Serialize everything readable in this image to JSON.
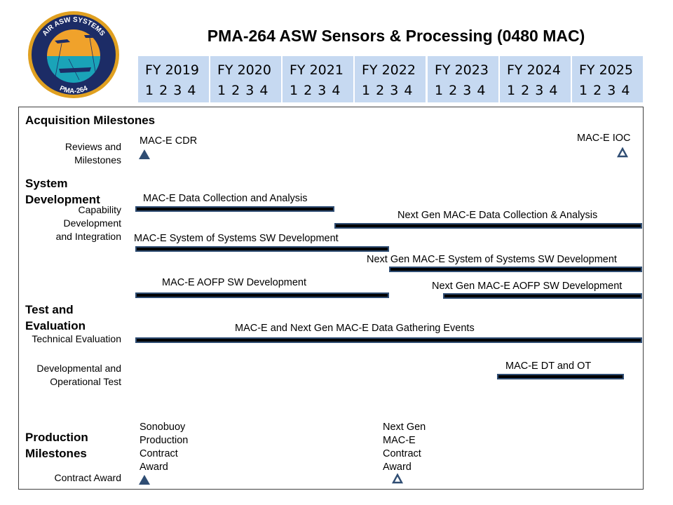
{
  "title": "PMA-264 ASW Sensors & Processing (0480 MAC)",
  "logo": {
    "top_text": "AIR ASW SYSTEMS",
    "bottom_text": "PMA-264",
    "colors": {
      "ring": "#1c2c66",
      "outer_gold": "#e0a020",
      "sky": "#f0a22b",
      "sea": "#1aa3b8"
    }
  },
  "timeline": {
    "fiscal_years": [
      {
        "label": "FY 2019",
        "quarters": "1 2 3 4"
      },
      {
        "label": "FY 2020",
        "quarters": "1 2 3 4"
      },
      {
        "label": "FY 2021",
        "quarters": "1 2 3 4"
      },
      {
        "label": "FY 2022",
        "quarters": "1 2 3 4"
      },
      {
        "label": "FY 2023",
        "quarters": "1 2 3 4"
      },
      {
        "label": "FY 2024",
        "quarters": "1 2 3 4"
      },
      {
        "label": "FY 2025",
        "quarters": "1 2 3 4"
      }
    ],
    "header_color": "#c6d9f1"
  },
  "sections": {
    "acquisition": {
      "title": "Acquisition Milestones",
      "sub": "Reviews and Milestones"
    },
    "system_dev": {
      "title": "System Development",
      "sub": "Capability Development and Integration"
    },
    "test_eval": {
      "title": "Test and Evaluation",
      "sub1": "Technical Evaluation",
      "sub2": "Developmental and Operational Test"
    },
    "production": {
      "title": "Production Milestones",
      "sub": "Contract Award"
    }
  },
  "chart_data": {
    "type": "gantt",
    "title": "PMA-264 ASW Sensors & Processing (0480 MAC)",
    "x_axis": {
      "start": "FY2019 Q1",
      "end": "FY2025 Q4",
      "unit": "fiscal quarter"
    },
    "colors": {
      "bar_fill": "#000000",
      "bar_outline": "#2f4d73",
      "milestone": "#2f4d73"
    },
    "bars": [
      {
        "label": "MAC-E Data Collection and Analysis",
        "start": "FY2019 Q1",
        "end": "FY2021 Q3"
      },
      {
        "label": "Next Gen MAC-E Data Collection & Analysis",
        "start": "FY2021 Q4",
        "end": "FY2025 Q4"
      },
      {
        "label": "MAC-E System of Systems SW Development",
        "start": "FY2019 Q1",
        "end": "FY2022 Q2"
      },
      {
        "label": "Next Gen MAC-E System of Systems SW Development",
        "start": "FY2022 Q3",
        "end": "FY2025 Q4"
      },
      {
        "label": "MAC-E AOFP SW Development",
        "start": "FY2019 Q1",
        "end": "FY2022 Q2"
      },
      {
        "label": "Next Gen MAC-E AOFP SW Development",
        "start": "FY2023 Q2",
        "end": "FY2025 Q4"
      },
      {
        "label": "MAC-E and Next Gen MAC-E Data Gathering Events",
        "start": "FY2019 Q1",
        "end": "FY2025 Q4"
      },
      {
        "label": "MAC-E DT and OT",
        "start": "FY2024 Q1",
        "end": "FY2025 Q3"
      }
    ],
    "milestones": [
      {
        "label": "MAC-E CDR",
        "date": "FY2019 Q1",
        "style": "filled"
      },
      {
        "label": "MAC-E IOC",
        "date": "FY2025 Q4",
        "style": "open"
      },
      {
        "label": "Sonobuoy Production Contract Award",
        "date": "FY2019 Q1",
        "style": "filled"
      },
      {
        "label": "Next Gen MAC-E Contract Award",
        "date": "FY2022 Q3",
        "style": "open"
      }
    ]
  }
}
